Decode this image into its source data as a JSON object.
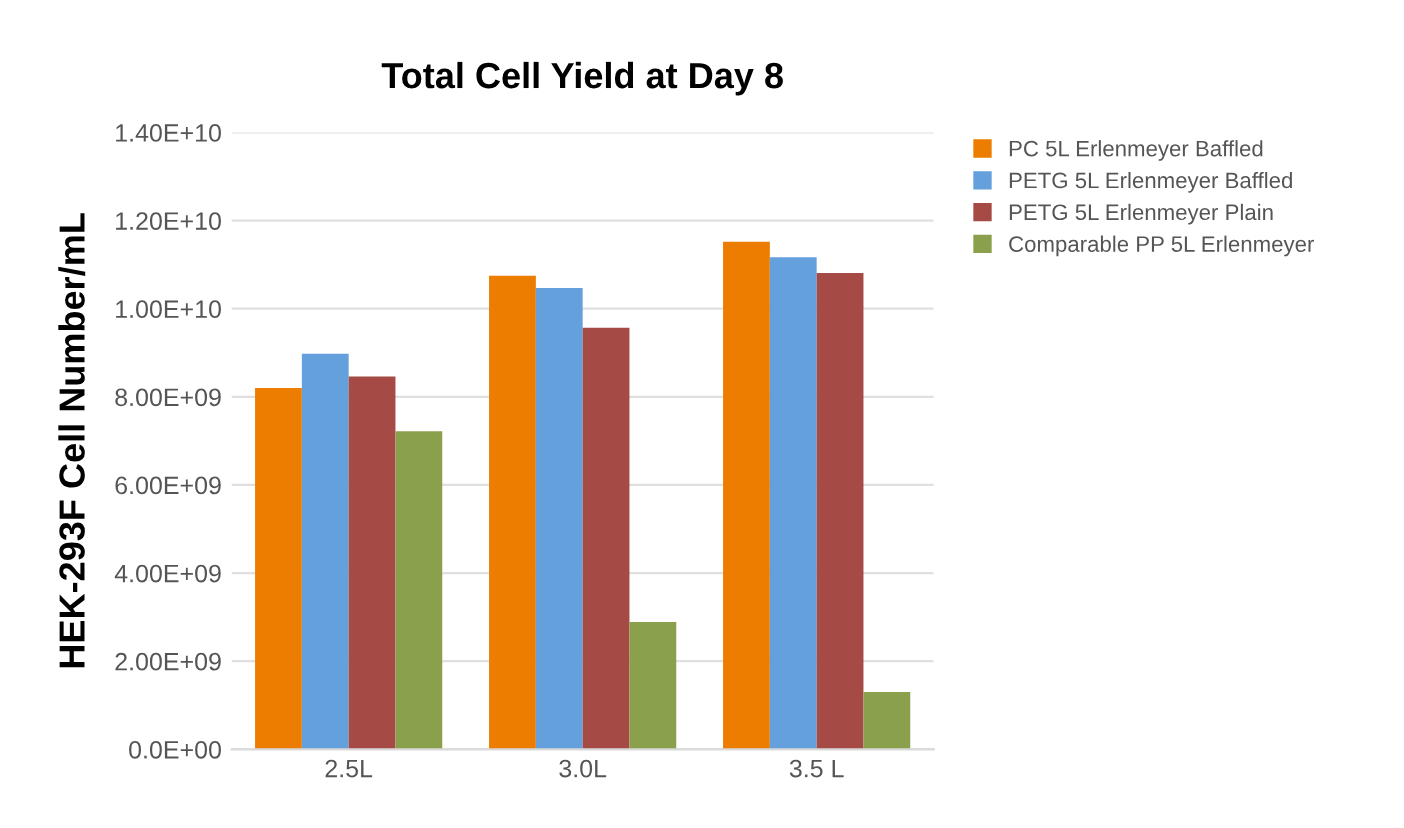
{
  "chart_data": {
    "type": "bar",
    "title": "Total Cell Yield at Day 8",
    "ylabel": "HEK-293F Cell Number/mL",
    "categories": [
      "2.5L",
      "3.0L",
      "3.5 L"
    ],
    "series": [
      {
        "name": "PC 5L Erlenmeyer Baffled",
        "color": "#ed7d00",
        "values": [
          8200000000.0,
          10750000000.0,
          11520000000.0
        ]
      },
      {
        "name": "PETG 5L Erlenmeyer Baffled",
        "color": "#64a0dc",
        "values": [
          8980000000.0,
          10470000000.0,
          11170000000.0
        ]
      },
      {
        "name": "PETG 5L Erlenmeyer Plain",
        "color": "#a54a44",
        "values": [
          8460000000.0,
          9570000000.0,
          10810000000.0
        ]
      },
      {
        "name": "Comparable PP 5L Erlenmeyer",
        "color": "#8aa04c",
        "values": [
          7220000000.0,
          2890000000.0,
          1300000000.0
        ]
      }
    ],
    "ylim": [
      0,
      14000000000.0
    ],
    "yticks": [
      {
        "value": 0,
        "label": "0.0E+00"
      },
      {
        "value": 2000000000.0,
        "label": "2.00E+09"
      },
      {
        "value": 4000000000.0,
        "label": "4.00E+09"
      },
      {
        "value": 6000000000.0,
        "label": "6.00E+09"
      },
      {
        "value": 8000000000.0,
        "label": "8.00E+09"
      },
      {
        "value": 10000000000.0,
        "label": "1.00E+10"
      },
      {
        "value": 12000000000.0,
        "label": "1.20E+10"
      },
      {
        "value": 14000000000.0,
        "label": "1.40E+10"
      }
    ],
    "grid": "y",
    "legend": "right"
  }
}
